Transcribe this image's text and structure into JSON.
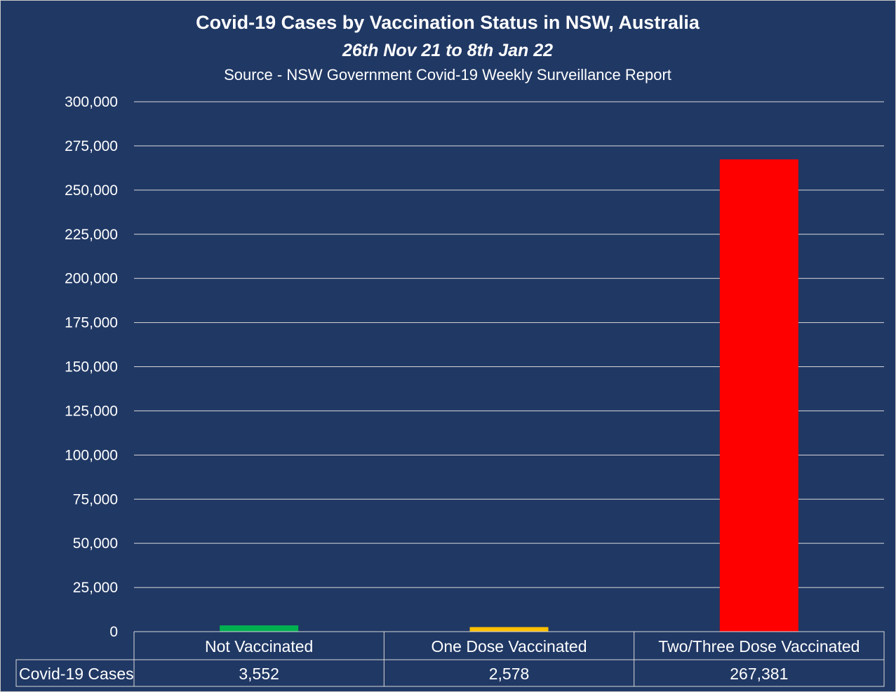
{
  "chart_data": {
    "type": "bar",
    "title": "Covid-19 Cases by Vaccination Status in NSW, Australia",
    "subtitle": "26th Nov 21 to 8th Jan 22",
    "source": "Source - NSW Government Covid-19 Weekly Surveillance Report",
    "categories": [
      "Not Vaccinated",
      "One Dose Vaccinated",
      "Two/Three Dose Vaccinated"
    ],
    "series": [
      {
        "name": "Covid-19 Cases",
        "values": [
          3552,
          2578,
          267381
        ],
        "labels": [
          "3,552",
          "2,578",
          "267,381"
        ],
        "colors": [
          "#00b050",
          "#ffc000",
          "#ff0000"
        ]
      }
    ],
    "ylim": [
      0,
      300000
    ],
    "yticks": [
      0,
      25000,
      50000,
      75000,
      100000,
      125000,
      150000,
      175000,
      200000,
      225000,
      250000,
      275000,
      300000
    ],
    "ytick_labels": [
      "0",
      "25,000",
      "50,000",
      "75,000",
      "100,000",
      "125,000",
      "150,000",
      "175,000",
      "200,000",
      "225,000",
      "250,000",
      "275,000",
      "300,000"
    ],
    "grid": true,
    "legend": "data-table",
    "background": "#203864",
    "text_color": "#ffffff"
  }
}
